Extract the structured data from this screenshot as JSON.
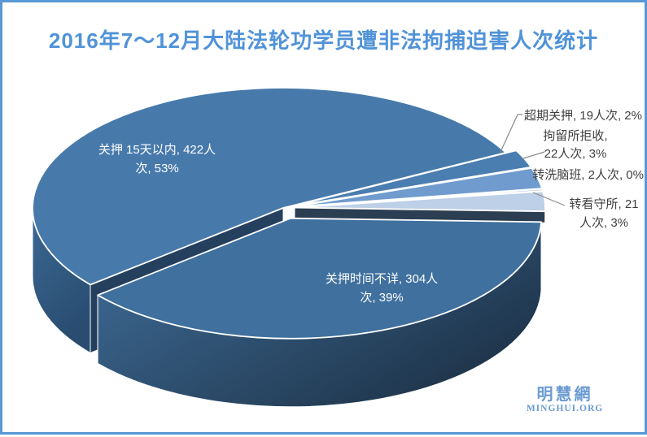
{
  "window": {
    "background": "#FFFFFF",
    "border_color": "#5898D4"
  },
  "title": {
    "text": "2016年7～12月大陆法轮功学员遭非法拘捕迫害人次统计",
    "color": "#5093D8"
  },
  "chart_data": {
    "type": "pie",
    "style": "3d-exploded",
    "title": "2016年7～12月大陆法轮功学员遭非法拘捕迫害人次统计",
    "unit": "人次",
    "legend": "none",
    "data_label_format": "category, value人次, percent%",
    "slices": [
      {
        "label": "关押 15天以内",
        "value": 422,
        "percent": "53%",
        "color": "#477AAB"
      },
      {
        "label": "超期关押",
        "value": 19,
        "percent": "2%",
        "color": "#4A7DB0"
      },
      {
        "label": "拘留所拒收",
        "value": 22,
        "percent": "3%",
        "color": "#6F9BCE"
      },
      {
        "label": "转洗脑班",
        "value": 2,
        "percent": "0%",
        "color": "#9BB9DC"
      },
      {
        "label": "转看守所",
        "value": 21,
        "percent": "3%",
        "color": "#BDD0E7"
      },
      {
        "label": "关押时间不详",
        "value": 304,
        "percent": "39%",
        "color": "#3F709E"
      }
    ]
  },
  "labels": {
    "detained_within_15_days": {
      "line1": "关押 15天以内, 422人",
      "line2": "次, 53%"
    },
    "overdue_detention": {
      "line1": "超期关押, 19人次, 2%"
    },
    "refused_by_detention_center": {
      "line1": "拘留所拒收,",
      "line2": "22人次, 3%"
    },
    "brainwashing_class": {
      "line1": "转洗脑班, 2人次, 0%"
    },
    "transferred_to_custody": {
      "line1": "转看守所, 21",
      "line2": "人次, 3%"
    },
    "detention_time_unknown": {
      "line1": "关押时间不详, 304人",
      "line2": "次, 39%"
    }
  },
  "watermark": {
    "cjk": "明慧網",
    "latin": "MINGHUI.ORG",
    "color": "#6A9BD2"
  }
}
